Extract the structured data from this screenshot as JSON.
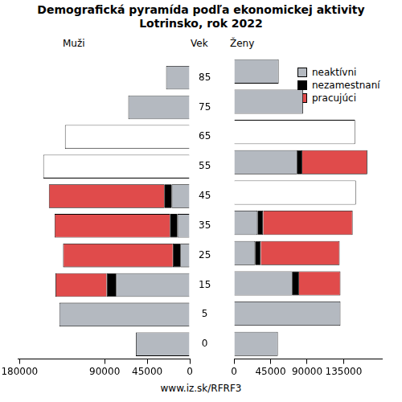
{
  "chart_data": {
    "type": "bar",
    "orientation": "horizontal",
    "stacked": true,
    "grid": false,
    "title": "Demografická pyramída podľa ekonomickej aktivity",
    "subtitle": "Lotrinsko, rok 2022",
    "ylabel": "Vek",
    "footer": "www.iz.sk/RFRF3",
    "legend": "upper right",
    "categories": [
      "0",
      "5",
      "15",
      "25",
      "35",
      "45",
      "55",
      "65",
      "75",
      "85"
    ],
    "panels": [
      {
        "name": "Muži",
        "xlim": [
          0,
          182000
        ],
        "xticks": [
          0,
          45000,
          90000,
          180000
        ],
        "series": [
          {
            "name": "neaktívni",
            "color": "#b4b9c0",
            "values": [
              57000,
              138000,
              78000,
              10000,
              13000,
              19000,
              null,
              null,
              65000,
              25000
            ]
          },
          {
            "name": "nezamestnaní",
            "color": "#000000",
            "values": [
              null,
              null,
              10000,
              8000,
              8000,
              8000,
              null,
              null,
              null,
              null
            ]
          },
          {
            "name": "pracujúci",
            "color": "#e04b4b",
            "values": [
              null,
              null,
              54000,
              116000,
              122000,
              122000,
              null,
              null,
              null,
              null
            ]
          },
          {
            "color": "#ffffff",
            "values": [
              null,
              null,
              null,
              null,
              null,
              null,
              155000,
              132000,
              null,
              null
            ]
          }
        ]
      },
      {
        "name": "Ženy",
        "xlim": [
          0,
          182000
        ],
        "xticks": [
          0,
          45000,
          90000,
          135000
        ],
        "series": [
          {
            "name": "neaktívni",
            "color": "#b4b9c0",
            "values": [
              54000,
              131000,
              72000,
              26000,
              29000,
              null,
              78000,
              null,
              85000,
              55000
            ]
          },
          {
            "name": "nezamestnaní",
            "color": "#000000",
            "values": [
              null,
              null,
              8000,
              7000,
              7000,
              null,
              6000,
              null,
              null,
              null
            ]
          },
          {
            "name": "pracujúci",
            "color": "#e04b4b",
            "values": [
              null,
              null,
              51000,
              97000,
              110000,
              null,
              80000,
              null,
              null,
              null
            ]
          },
          {
            "color": "#ffffff",
            "values": [
              null,
              null,
              null,
              null,
              null,
              150000,
              null,
              149000,
              null,
              null
            ]
          }
        ]
      }
    ]
  }
}
